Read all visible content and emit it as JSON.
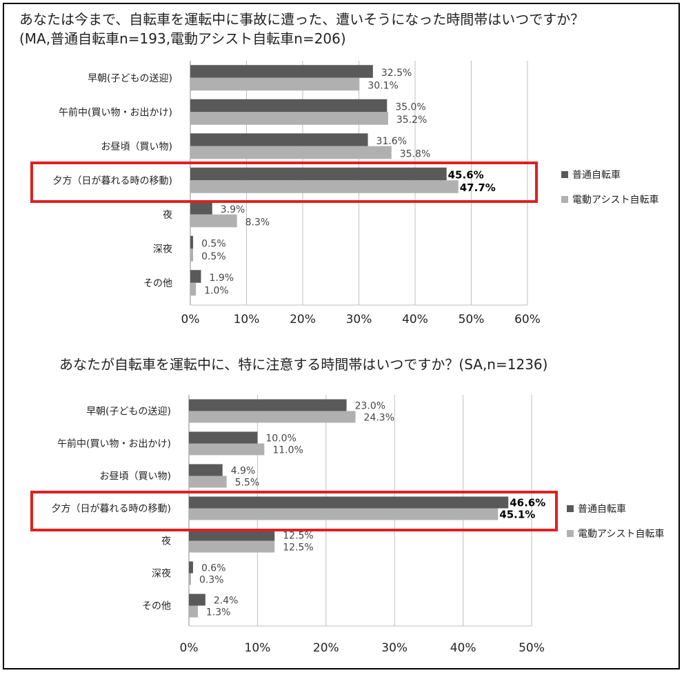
{
  "colors": {
    "series1": "#595959",
    "series2": "#b0b0b0",
    "highlight": "#e02020",
    "grid": "#bfbfbf"
  },
  "chart_data": [
    {
      "type": "bar",
      "orientation": "horizontal",
      "title": "あなたは今まで、自転車を運転中に事故に遭った、遭いそうになった時間帯はいつですか？",
      "subtitle": "(MA,普通自転車n=193,電動アシスト自転車n=206)",
      "categories": [
        "早朝(子どもの送迎)",
        "午前中(買い物・お出かけ)",
        "お昼頃（買い物)",
        "夕方（日が暮れる時の移動)",
        "夜",
        "深夜",
        "その他"
      ],
      "series": [
        {
          "name": "普通自転車",
          "values": [
            32.5,
            35.0,
            31.6,
            45.6,
            3.9,
            0.5,
            1.9
          ]
        },
        {
          "name": "電動アシスト自転車",
          "values": [
            30.1,
            35.2,
            35.8,
            47.7,
            8.3,
            0.5,
            1.0
          ]
        }
      ],
      "xlim": [
        0,
        60
      ],
      "xticks": [
        "0%",
        "10%",
        "20%",
        "30%",
        "40%",
        "50%",
        "60%"
      ],
      "highlight_category": "夕方（日が暮れる時の移動)",
      "grid": true,
      "legend": "right"
    },
    {
      "type": "bar",
      "orientation": "horizontal",
      "title": "あなたが自転車を運転中に、特に注意する時間帯はいつですか？(SA,n=1236)",
      "categories": [
        "早朝(子どもの送迎)",
        "午前中(買い物・お出かけ)",
        "お昼頃（買い物)",
        "夕方（日が暮れる時の移動)",
        "夜",
        "深夜",
        "その他"
      ],
      "series": [
        {
          "name": "普通自転車",
          "values": [
            23.0,
            10.0,
            4.9,
            46.6,
            12.5,
            0.6,
            2.4
          ]
        },
        {
          "name": "電動アシスト自転車",
          "values": [
            24.3,
            11.0,
            5.5,
            45.1,
            12.5,
            0.3,
            1.3
          ]
        }
      ],
      "xlim": [
        0,
        50
      ],
      "xticks": [
        "0%",
        "10%",
        "20%",
        "30%",
        "40%",
        "50%"
      ],
      "highlight_category": "夕方（日が暮れる時の移動)",
      "grid": true,
      "legend": "right"
    }
  ]
}
